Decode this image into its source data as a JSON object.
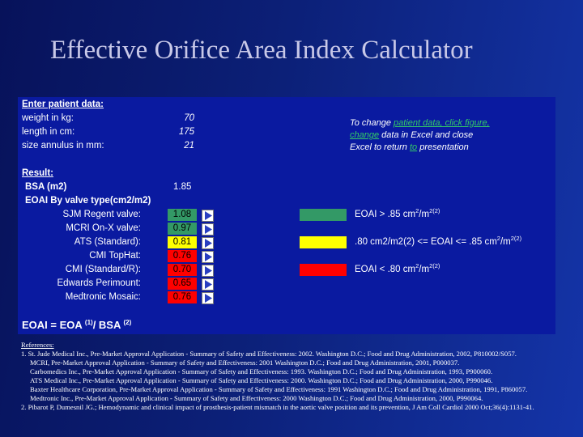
{
  "title": "Effective Orifice Area Index Calculator",
  "panel": {
    "input_heading": "Enter patient data:",
    "inputs": [
      {
        "label": "weight in kg:",
        "value": "70"
      },
      {
        "label": "length in cm:",
        "value": "175"
      },
      {
        "label": "size annulus in mm:",
        "value": "21"
      }
    ],
    "result_heading": "Result:",
    "bsa": {
      "label": "BSA (m2)",
      "value": "1.85"
    },
    "eoai_heading": "EOAI By valve type(cm2/m2)",
    "valves": [
      {
        "name": "SJM Regent valve:",
        "value": "1.08",
        "color": "#339966"
      },
      {
        "name": "MCRI On-X valve:",
        "value": "0.97",
        "color": "#339966"
      },
      {
        "name": "ATS (Standard):",
        "value": "0.81",
        "color": "#ffff00"
      },
      {
        "name": "CMI TopHat:",
        "value": "0.76",
        "color": "#ff0000"
      },
      {
        "name": "CMI (Standard/R):",
        "value": "0.70",
        "color": "#ff0000"
      },
      {
        "name": "Edwards Perimount:",
        "value": "0.65",
        "color": "#ff0000"
      },
      {
        "name": "Medtronic Mosaic:",
        "value": "0.76",
        "color": "#ff0000"
      }
    ],
    "legend": [
      {
        "color": "#339966",
        "row": 0,
        "parts": [
          [
            "EOAI > .85 cm",
            "2"
          ],
          [
            "/m",
            "2(2)"
          ]
        ]
      },
      {
        "color": "#ffff00",
        "row": 2,
        "parts": [
          [
            ".80 cm2/m2(2) <= EOAI <= .85 cm",
            "2"
          ],
          [
            "/m",
            "2(2)"
          ]
        ]
      },
      {
        "color": "#ff0000",
        "row": 4,
        "parts": [
          [
            "EOAI < .80 cm",
            "2"
          ],
          [
            "/m",
            "2(2)"
          ]
        ]
      }
    ],
    "note": [
      [
        {
          "text": "To change "
        },
        {
          "text": "patient data, click  figure,",
          "link": true
        }
      ],
      [
        {
          "text": "change",
          "link": true
        },
        {
          "text": " data in Excel and close"
        }
      ],
      [
        {
          "text": "Excel to return "
        },
        {
          "text": "to",
          "link": true
        },
        {
          "text": " presentation"
        }
      ]
    ],
    "formula": [
      [
        "EOAI = EOA ",
        "(1)"
      ],
      [
        "/ BSA ",
        "(2)"
      ]
    ]
  },
  "references": {
    "heading": "References:",
    "lines": [
      "1.  St. Jude Medical  Inc., Pre-Market Approval Application - Summary of Safety and Effectiveness: 2002.  Washington D.C.; Food and Drug Administration, 2002, P810002/S057.",
      "MCRI, Pre-Market Approval Application - Summary of Safety and Effectiveness: 2001  Washington D.C.; Food and Drug Administration, 2001, P000037.",
      "Carbomedics Inc., Pre-Market Approval Application - Summary of Safety and Effectiveness: 1993.  Washington D.C.; Food and Drug Administration, 1993, P900060.",
      "ATS Medical Inc., Pre-Market Approval Application - Summary of Safety and Effectiveness: 2000.  Washington D.C.; Food and Drug Administration, 2000, P990046.",
      "Baxter Healthcare Corporation, Pre-Market Approval Application - Summary of Safety and Effectiveness: 1991  Washington D.C.; Food and Drug Administration, 1991, P860057.",
      "Medtronic Inc., Pre-Market Approval Application - Summary of Safety and Effectiveness: 2000  Washington D.C.; Food and Drug Administration, 2000, P990064.",
      "2.  Pibarot P, Dumesnil JG.; Hemodynamic and clinical impact of prosthesis-patient mismatch in the aortic valve position and its prevention, J Am Coll Cardiol 2000 Oct;36(4):1131-41."
    ]
  }
}
